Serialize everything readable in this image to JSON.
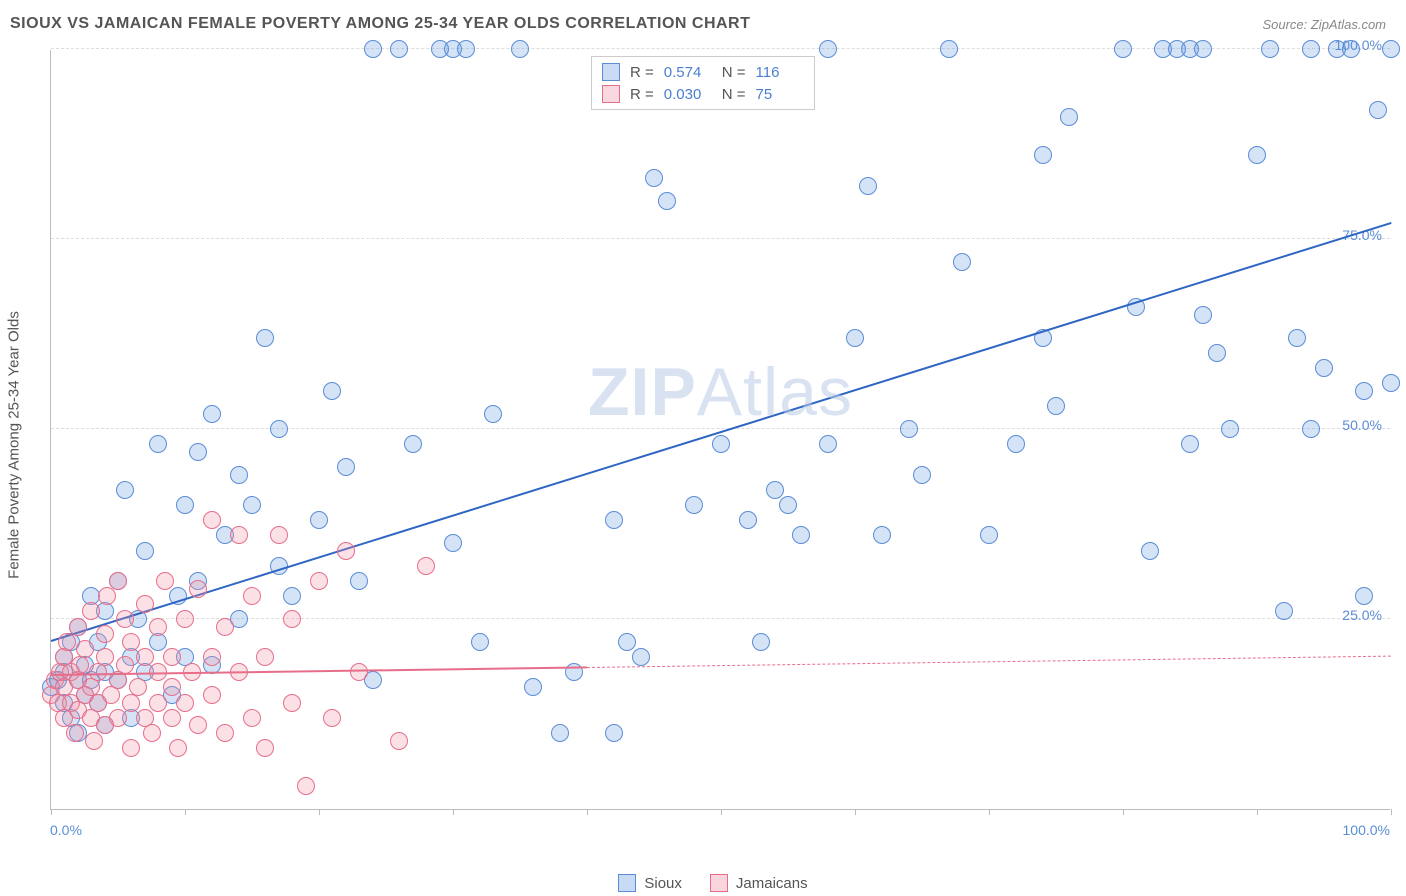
{
  "header": {
    "title": "SIOUX VS JAMAICAN FEMALE POVERTY AMONG 25-34 YEAR OLDS CORRELATION CHART",
    "source": "Source: ZipAtlas.com"
  },
  "watermark": {
    "bold": "ZIP",
    "rest": "Atlas"
  },
  "chart": {
    "type": "scatter",
    "ylabel": "Female Poverty Among 25-34 Year Olds",
    "xlim": [
      0,
      100
    ],
    "ylim": [
      0,
      100
    ],
    "xtick_labels": {
      "min": "0.0%",
      "max": "100.0%"
    },
    "ytick_labels": [
      "25.0%",
      "50.0%",
      "75.0%",
      "100.0%"
    ],
    "ytick_values": [
      25,
      50,
      75,
      100
    ],
    "xtick_values": [
      0,
      10,
      20,
      30,
      40,
      50,
      60,
      70,
      80,
      90,
      100
    ],
    "grid_color": "#dddddd",
    "axis_color": "#bbbbbb",
    "background_color": "#ffffff",
    "marker_radius": 9,
    "marker_border_width": 1.5,
    "marker_fill_opacity": 0.28,
    "series": [
      {
        "name": "Sioux",
        "color": "#6699dd",
        "border_color": "#5b8dd6",
        "R": "0.574",
        "N": "116",
        "trend": {
          "x1": 0,
          "y1": 22,
          "x2": 100,
          "y2": 77,
          "width": 2.5,
          "color": "#2f66c4"
        },
        "points": [
          [
            0,
            16
          ],
          [
            0.5,
            17
          ],
          [
            1,
            18
          ],
          [
            1,
            14
          ],
          [
            1,
            20
          ],
          [
            1.5,
            12
          ],
          [
            1.5,
            22
          ],
          [
            2,
            17
          ],
          [
            2,
            10
          ],
          [
            2,
            24
          ],
          [
            2.5,
            15
          ],
          [
            2.5,
            19
          ],
          [
            3,
            17
          ],
          [
            3,
            28
          ],
          [
            3.5,
            14
          ],
          [
            3.5,
            22
          ],
          [
            4,
            18
          ],
          [
            4,
            11
          ],
          [
            4,
            26
          ],
          [
            5,
            30
          ],
          [
            5,
            17
          ],
          [
            5.5,
            42
          ],
          [
            6,
            20
          ],
          [
            6,
            12
          ],
          [
            6.5,
            25
          ],
          [
            7,
            34
          ],
          [
            7,
            18
          ],
          [
            8,
            22
          ],
          [
            8,
            48
          ],
          [
            9,
            15
          ],
          [
            9.5,
            28
          ],
          [
            10,
            40
          ],
          [
            10,
            20
          ],
          [
            11,
            47
          ],
          [
            11,
            30
          ],
          [
            12,
            52
          ],
          [
            12,
            19
          ],
          [
            13,
            36
          ],
          [
            14,
            44
          ],
          [
            14,
            25
          ],
          [
            15,
            40
          ],
          [
            16,
            62
          ],
          [
            17,
            32
          ],
          [
            17,
            50
          ],
          [
            18,
            28
          ],
          [
            20,
            38
          ],
          [
            21,
            55
          ],
          [
            22,
            45
          ],
          [
            23,
            30
          ],
          [
            24,
            17
          ],
          [
            24,
            100
          ],
          [
            26,
            100
          ],
          [
            27,
            48
          ],
          [
            30,
            100
          ],
          [
            30,
            35
          ],
          [
            31,
            100
          ],
          [
            32,
            22
          ],
          [
            35,
            100
          ],
          [
            36,
            16
          ],
          [
            38,
            10
          ],
          [
            39,
            18
          ],
          [
            42,
            38
          ],
          [
            42,
            10
          ],
          [
            43,
            22
          ],
          [
            44,
            20
          ],
          [
            45,
            83
          ],
          [
            48,
            40
          ],
          [
            50,
            48
          ],
          [
            52,
            38
          ],
          [
            53,
            22
          ],
          [
            54,
            42
          ],
          [
            55,
            40
          ],
          [
            56,
            36
          ],
          [
            58,
            48
          ],
          [
            60,
            62
          ],
          [
            61,
            82
          ],
          [
            62,
            36
          ],
          [
            64,
            50
          ],
          [
            65,
            44
          ],
          [
            67,
            100
          ],
          [
            68,
            72
          ],
          [
            70,
            36
          ],
          [
            72,
            48
          ],
          [
            74,
            62
          ],
          [
            75,
            53
          ],
          [
            76,
            91
          ],
          [
            80,
            100
          ],
          [
            81,
            66
          ],
          [
            82,
            34
          ],
          [
            83,
            100
          ],
          [
            84,
            100
          ],
          [
            85,
            48
          ],
          [
            85,
            100
          ],
          [
            86,
            65
          ],
          [
            86,
            100
          ],
          [
            87,
            60
          ],
          [
            88,
            50
          ],
          [
            90,
            86
          ],
          [
            91,
            100
          ],
          [
            92,
            26
          ],
          [
            93,
            62
          ],
          [
            94,
            100
          ],
          [
            94,
            50
          ],
          [
            95,
            58
          ],
          [
            96,
            100
          ],
          [
            97,
            100
          ],
          [
            98,
            28
          ],
          [
            98,
            55
          ],
          [
            99,
            92
          ],
          [
            100,
            100
          ],
          [
            100,
            56
          ],
          [
            29,
            100
          ],
          [
            33,
            52
          ],
          [
            46,
            80
          ],
          [
            58,
            100
          ],
          [
            74,
            86
          ]
        ]
      },
      {
        "name": "Jamaicans",
        "color": "#f28fa4",
        "border_color": "#e76e8a",
        "R": "0.030",
        "N": "75",
        "trend": {
          "x1": 0,
          "y1": 17.5,
          "x2": 40,
          "y2": 18.5,
          "width": 2.5,
          "color": "#e76e8a",
          "dash_x1": 40,
          "dash_y1": 18.5,
          "dash_x2": 100,
          "dash_y2": 20,
          "dash_width": 1.2
        },
        "points": [
          [
            0,
            15
          ],
          [
            0.3,
            17
          ],
          [
            0.5,
            14
          ],
          [
            0.7,
            18
          ],
          [
            1,
            16
          ],
          [
            1,
            12
          ],
          [
            1,
            20
          ],
          [
            1.2,
            22
          ],
          [
            1.5,
            14
          ],
          [
            1.5,
            18
          ],
          [
            1.8,
            10
          ],
          [
            2,
            17
          ],
          [
            2,
            24
          ],
          [
            2,
            13
          ],
          [
            2.2,
            19
          ],
          [
            2.5,
            15
          ],
          [
            2.5,
            21
          ],
          [
            3,
            16
          ],
          [
            3,
            12
          ],
          [
            3,
            26
          ],
          [
            3.2,
            9
          ],
          [
            3.5,
            18
          ],
          [
            3.5,
            14
          ],
          [
            4,
            20
          ],
          [
            4,
            11
          ],
          [
            4,
            23
          ],
          [
            4.2,
            28
          ],
          [
            4.5,
            15
          ],
          [
            5,
            17
          ],
          [
            5,
            30
          ],
          [
            5,
            12
          ],
          [
            5.5,
            19
          ],
          [
            5.5,
            25
          ],
          [
            6,
            14
          ],
          [
            6,
            22
          ],
          [
            6,
            8
          ],
          [
            6.5,
            16
          ],
          [
            7,
            12
          ],
          [
            7,
            27
          ],
          [
            7,
            20
          ],
          [
            7.5,
            10
          ],
          [
            8,
            18
          ],
          [
            8,
            24
          ],
          [
            8,
            14
          ],
          [
            8.5,
            30
          ],
          [
            9,
            12
          ],
          [
            9,
            20
          ],
          [
            9,
            16
          ],
          [
            9.5,
            8
          ],
          [
            10,
            25
          ],
          [
            10,
            14
          ],
          [
            10.5,
            18
          ],
          [
            11,
            11
          ],
          [
            11,
            29
          ],
          [
            12,
            15
          ],
          [
            12,
            20
          ],
          [
            12,
            38
          ],
          [
            13,
            10
          ],
          [
            13,
            24
          ],
          [
            14,
            36
          ],
          [
            14,
            18
          ],
          [
            15,
            12
          ],
          [
            15,
            28
          ],
          [
            16,
            20
          ],
          [
            16,
            8
          ],
          [
            17,
            36
          ],
          [
            18,
            14
          ],
          [
            18,
            25
          ],
          [
            19,
            3
          ],
          [
            20,
            30
          ],
          [
            21,
            12
          ],
          [
            22,
            34
          ],
          [
            23,
            18
          ],
          [
            26,
            9
          ],
          [
            28,
            32
          ]
        ]
      }
    ],
    "legend_bottom": [
      {
        "label": "Sioux",
        "fill": "#c7dbf4",
        "border": "#5b8dd6"
      },
      {
        "label": "Jamaicans",
        "fill": "#fbd5de",
        "border": "#e76e8a"
      }
    ]
  }
}
